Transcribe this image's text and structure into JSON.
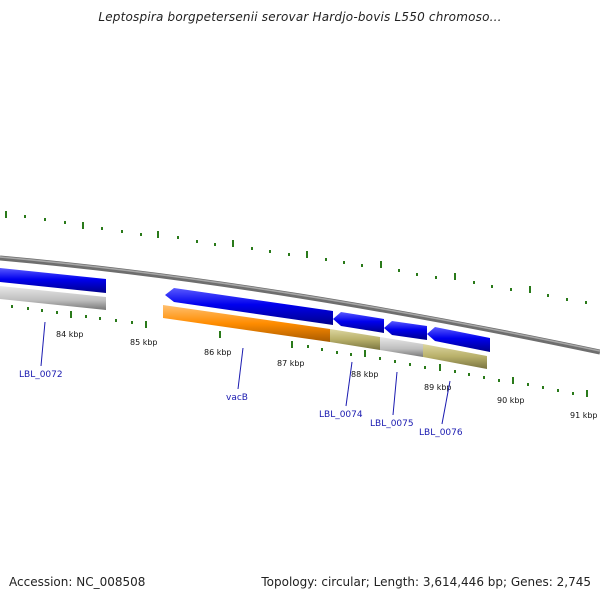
{
  "title": "Leptospira borgpetersenii serovar Hardjo-bovis L550 chromoso...",
  "footer": {
    "accession": "Accession: NC_008508",
    "summary": "Topology: circular; Length: 3,614,446 bp; Genes: 2,745"
  },
  "kbp_labels": [
    "84 kbp",
    "85 kbp",
    "86 kbp",
    "87 kbp",
    "88 kbp",
    "89 kbp",
    "90 kbp",
    "91 kbp"
  ],
  "genes": [
    {
      "name": "LBL_0072",
      "strand": "+",
      "cds_color": "#0000ee",
      "feature_color": "#bdbdbd"
    },
    {
      "name": "vacB",
      "strand": "-",
      "cds_color": "#0000ee",
      "feature_color": "#ff8c00"
    },
    {
      "name": "LBL_0074",
      "strand": "-",
      "cds_color": "#0000ee",
      "feature_color": "#b8b06a"
    },
    {
      "name": "LBL_0075",
      "strand": "-",
      "cds_color": "#0000ee",
      "feature_color": "#c6c6c6"
    },
    {
      "name": "LBL_0076",
      "strand": "-",
      "cds_color": "#0000ee",
      "feature_color": "#b8b06a"
    }
  ],
  "colors": {
    "backbone": "#8a8a8a",
    "tick": "#2a7a1a",
    "label": "#1a1ab0"
  }
}
